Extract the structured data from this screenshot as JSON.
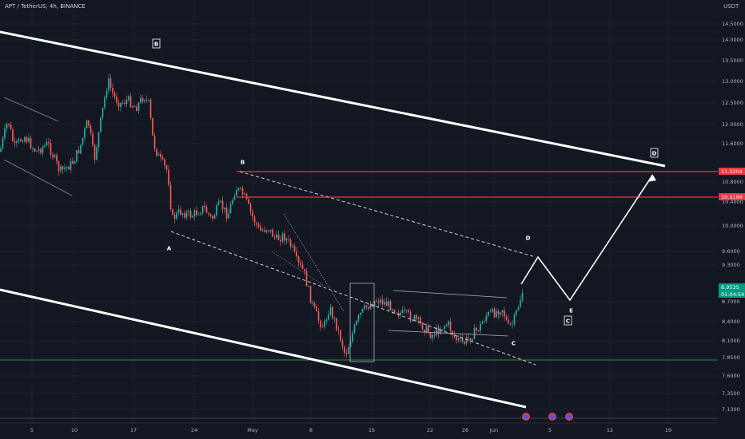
{
  "header": {
    "symbol_line": "APT / TetherUS, 4h, BINANCE",
    "currency": "USDT"
  },
  "axis": {
    "price_ticks": [
      {
        "label": "14.5000",
        "v": 14.5
      },
      {
        "label": "14.0000",
        "v": 14.0
      },
      {
        "label": "13.5000",
        "v": 13.5
      },
      {
        "label": "13.0000",
        "v": 13.0
      },
      {
        "label": "12.5000",
        "v": 12.5
      },
      {
        "label": "12.0000",
        "v": 12.0
      },
      {
        "label": "11.6000",
        "v": 11.6
      },
      {
        "label": "10.8000",
        "v": 10.8
      },
      {
        "label": "10.4000",
        "v": 10.4
      },
      {
        "label": "10.0000",
        "v": 10.0
      },
      {
        "label": "9.6000",
        "v": 9.6
      },
      {
        "label": "9.3000",
        "v": 9.3
      },
      {
        "label": "8.7000",
        "v": 8.7
      },
      {
        "label": "8.4000",
        "v": 8.4
      },
      {
        "label": "8.1000",
        "v": 8.1
      },
      {
        "label": "7.8500",
        "v": 7.85
      },
      {
        "label": "7.6000",
        "v": 7.6
      },
      {
        "label": "7.3500",
        "v": 7.35
      },
      {
        "label": "7.1300",
        "v": 7.13
      }
    ],
    "time_ticks": [
      "5",
      "10",
      "17",
      "24",
      "May",
      "8",
      "15",
      "22",
      "26",
      "Jun",
      "5",
      "12",
      "19"
    ]
  },
  "price_tags": [
    {
      "label": "11.0204",
      "color": "#f23645"
    },
    {
      "label": "10.5199",
      "color": "#f23645"
    },
    {
      "label": "8.9535",
      "sublabel": "01:04:54",
      "color": "#089981"
    }
  ],
  "wave_labels": [
    "B",
    "B",
    "A",
    "D",
    "C",
    "E",
    "C",
    "D"
  ],
  "colors": {
    "up": "#26a69a",
    "down": "#ef5350",
    "resistance": "#f23645",
    "support": "#4caf50",
    "bg": "#131722"
  }
}
